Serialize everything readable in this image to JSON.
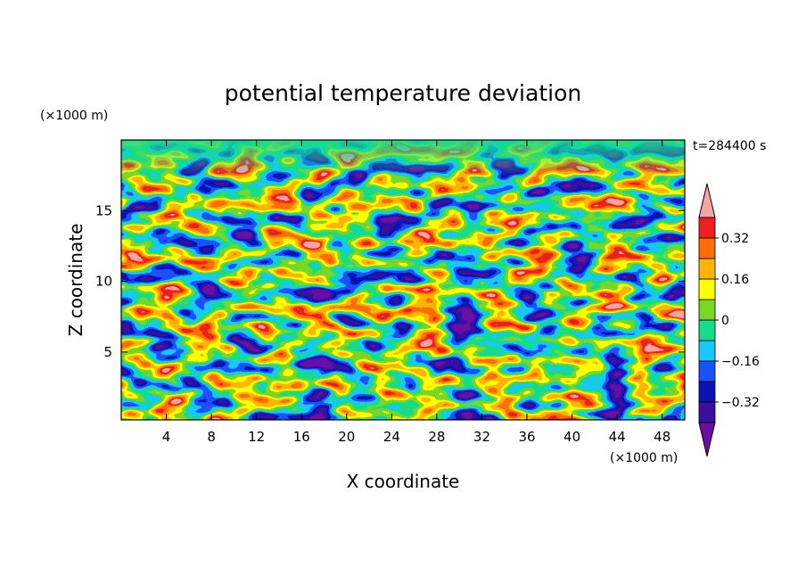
{
  "chart_data": {
    "type": "heatmap",
    "subtype": "filled-contour",
    "title": "potential temperature deviation",
    "xlabel": "X coordinate",
    "ylabel": "Z coordinate",
    "x_unit": "(×1000 m)",
    "y_unit": "(×1000 m)",
    "time_label": "t=284400 s",
    "xlim": [
      0,
      50
    ],
    "ylim": [
      0.2,
      20
    ],
    "x_ticks": [
      4,
      8,
      12,
      16,
      20,
      24,
      28,
      32,
      36,
      40,
      44,
      48
    ],
    "y_ticks": [
      5,
      10,
      15
    ],
    "x_tick_labels": [
      "4",
      "8",
      "12",
      "16",
      "20",
      "24",
      "28",
      "32",
      "36",
      "40",
      "44",
      "48"
    ],
    "y_tick_labels": [
      "5",
      "10",
      "15"
    ],
    "colorbar": {
      "levels": [
        -0.4,
        -0.32,
        -0.24,
        -0.16,
        -0.08,
        0,
        0.08,
        0.16,
        0.24,
        0.32,
        0.4
      ],
      "tick_values": [
        -0.32,
        -0.16,
        0,
        0.16,
        0.32
      ],
      "tick_labels": [
        "−0.32",
        "−0.16",
        "0",
        "0.16",
        "0.32"
      ],
      "colors": [
        "#6a0fa6",
        "#3a0f9e",
        "#0a14b4",
        "#1c50ff",
        "#19c8ff",
        "#14dc8c",
        "#7ad728",
        "#ffff00",
        "#ffb400",
        "#ff6e00",
        "#f01e1e",
        "#f5a5a5"
      ],
      "extend": "both"
    }
  }
}
